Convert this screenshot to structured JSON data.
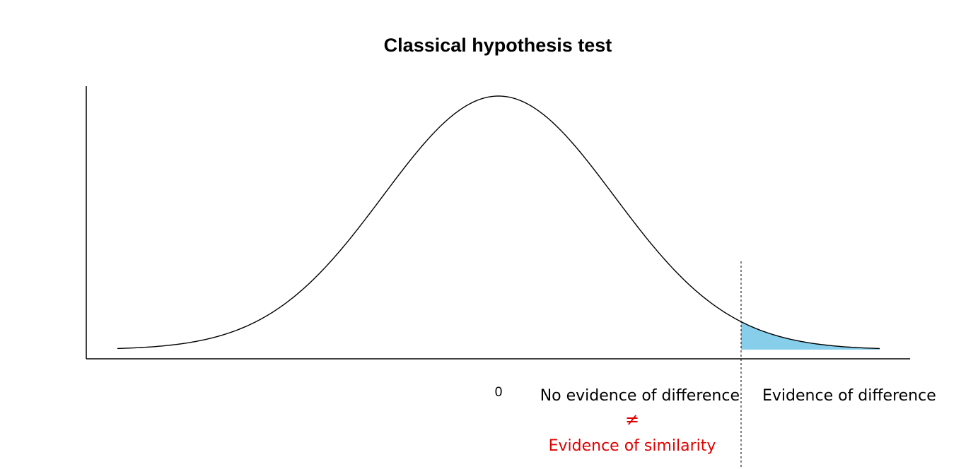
{
  "chart_data": {
    "type": "area",
    "title": "Classical hypothesis test",
    "xlabel": "",
    "ylabel": "",
    "xlim": [
      -3.5,
      3.5
    ],
    "ylim": [
      0,
      0.42
    ],
    "grid": false,
    "distribution": "standard normal density",
    "series": [
      {
        "x": [
          -3.3,
          -2.0,
          -1.0,
          0.0,
          1.0,
          2.0,
          3.3
        ],
        "values": [
          0.0017,
          0.054,
          0.242,
          0.399,
          0.242,
          0.054,
          0.0017
        ]
      }
    ],
    "shaded_region": {
      "x_from": 2.1,
      "x_to": 3.3,
      "color": "#87CEEB"
    },
    "critical_value": 2.1,
    "x_ticks": [
      "0"
    ],
    "annotations": {
      "left_region": "No evidence of difference",
      "right_region": "Evidence of difference",
      "not_equal_symbol": "≠",
      "similarity": "Evidence of similarity"
    }
  },
  "colors": {
    "curve": "#000000",
    "shade": "#87CEEB",
    "emphasis": "#e00000"
  }
}
